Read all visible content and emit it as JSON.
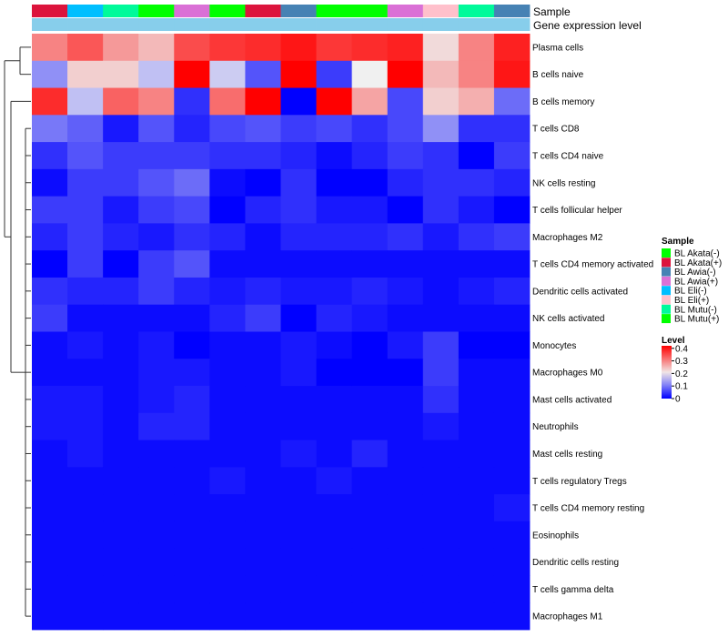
{
  "chart_data": {
    "type": "heatmap",
    "annotation_track_labels": [
      "Sample",
      "Gene expression level"
    ],
    "gene_expression_color": "#87ceeb",
    "sample_colors": {
      "BL Akata(-)": "#00ff00",
      "BL Akata(+)": "#dc143c",
      "BL Awia(-)": "#4682b4",
      "BL Awia(+)": "#da70d6",
      "BL Eli(-)": "#00bfff",
      "BL Eli(+)": "#ffc0cb",
      "BL Mutu(-)": "#00fa9a",
      "BL Mutu(+)": "#00ff00"
    },
    "columns": [
      "BL Akata(+)",
      "BL Eli(-)",
      "BL Mutu(-)",
      "BL Mutu(+)",
      "BL Awia(+)",
      "BL Akata(-)",
      "BL Akata(+)",
      "BL Awia(-)",
      "BL Akata(-)",
      "BL Mutu(+)",
      "BL Awia(+)",
      "BL Eli(+)",
      "BL Mutu(-)",
      "BL Awia(-)"
    ],
    "rows": [
      "Plasma cells",
      "B cells naive",
      "B cells memory",
      "T cells CD8",
      "T cells CD4 naive",
      "NK cells resting",
      "T cells follicular helper",
      "Macrophages M2",
      "T cells CD4 memory activated",
      "Dendritic cells activated",
      "NK cells activated",
      "Monocytes",
      "Macrophages M0",
      "Mast cells activated",
      "Neutrophils",
      "Mast cells resting",
      "T cells regulatory  Tregs",
      "T cells CD4 memory resting",
      "Eosinophils",
      "Dendritic cells resting",
      "T cells gamma delta",
      "Macrophages M1"
    ],
    "values": [
      [
        0.3,
        0.34,
        0.28,
        0.25,
        0.35,
        0.37,
        0.38,
        0.4,
        0.37,
        0.38,
        0.39,
        0.22,
        0.3,
        0.39
      ],
      [
        0.12,
        0.23,
        0.23,
        0.16,
        0.42,
        0.17,
        0.07,
        0.42,
        0.05,
        0.2,
        0.42,
        0.25,
        0.3,
        0.4
      ],
      [
        0.38,
        0.16,
        0.33,
        0.3,
        0.04,
        0.32,
        0.42,
        0.0,
        0.42,
        0.27,
        0.06,
        0.23,
        0.26,
        0.09
      ],
      [
        0.1,
        0.08,
        0.02,
        0.07,
        0.03,
        0.06,
        0.07,
        0.05,
        0.06,
        0.04,
        0.06,
        0.12,
        0.04,
        0.04
      ],
      [
        0.04,
        0.07,
        0.05,
        0.05,
        0.05,
        0.04,
        0.04,
        0.03,
        0.01,
        0.03,
        0.05,
        0.04,
        0.0,
        0.05
      ],
      [
        0.01,
        0.05,
        0.05,
        0.07,
        0.09,
        0.01,
        0.0,
        0.04,
        0.0,
        0.0,
        0.03,
        0.04,
        0.04,
        0.03
      ],
      [
        0.05,
        0.05,
        0.02,
        0.05,
        0.06,
        0.0,
        0.03,
        0.04,
        0.02,
        0.02,
        0.0,
        0.04,
        0.02,
        0.0
      ],
      [
        0.03,
        0.05,
        0.03,
        0.02,
        0.04,
        0.03,
        0.01,
        0.03,
        0.03,
        0.03,
        0.04,
        0.02,
        0.04,
        0.05
      ],
      [
        0.0,
        0.05,
        0.0,
        0.05,
        0.07,
        0.01,
        0.01,
        0.01,
        0.01,
        0.01,
        0.01,
        0.01,
        0.01,
        0.01
      ],
      [
        0.04,
        0.03,
        0.03,
        0.05,
        0.03,
        0.02,
        0.03,
        0.02,
        0.02,
        0.03,
        0.02,
        0.01,
        0.02,
        0.03
      ],
      [
        0.05,
        0.01,
        0.01,
        0.01,
        0.01,
        0.03,
        0.05,
        0.0,
        0.03,
        0.02,
        0.01,
        0.01,
        0.01,
        0.01
      ],
      [
        0.01,
        0.02,
        0.01,
        0.02,
        0.0,
        0.01,
        0.01,
        0.02,
        0.01,
        0.0,
        0.02,
        0.05,
        0.0,
        0.0
      ],
      [
        0.01,
        0.01,
        0.01,
        0.02,
        0.02,
        0.01,
        0.01,
        0.02,
        0.0,
        0.0,
        0.0,
        0.05,
        0.01,
        0.01
      ],
      [
        0.02,
        0.02,
        0.01,
        0.02,
        0.03,
        0.01,
        0.01,
        0.01,
        0.01,
        0.01,
        0.01,
        0.04,
        0.01,
        0.01
      ],
      [
        0.02,
        0.02,
        0.01,
        0.03,
        0.03,
        0.01,
        0.01,
        0.01,
        0.01,
        0.01,
        0.01,
        0.02,
        0.01,
        0.01
      ],
      [
        0.01,
        0.02,
        0.01,
        0.01,
        0.01,
        0.01,
        0.01,
        0.02,
        0.01,
        0.03,
        0.01,
        0.01,
        0.01,
        0.01
      ],
      [
        0.01,
        0.01,
        0.01,
        0.01,
        0.01,
        0.02,
        0.01,
        0.01,
        0.02,
        0.01,
        0.01,
        0.01,
        0.01,
        0.01
      ],
      [
        0.01,
        0.01,
        0.01,
        0.01,
        0.01,
        0.01,
        0.01,
        0.01,
        0.01,
        0.01,
        0.01,
        0.01,
        0.01,
        0.02
      ],
      [
        0.01,
        0.01,
        0.01,
        0.01,
        0.01,
        0.01,
        0.01,
        0.01,
        0.01,
        0.01,
        0.01,
        0.01,
        0.01,
        0.01
      ],
      [
        0.01,
        0.01,
        0.01,
        0.01,
        0.01,
        0.01,
        0.01,
        0.01,
        0.01,
        0.01,
        0.01,
        0.01,
        0.01,
        0.01
      ],
      [
        0.01,
        0.01,
        0.01,
        0.01,
        0.01,
        0.01,
        0.01,
        0.01,
        0.01,
        0.01,
        0.01,
        0.01,
        0.01,
        0.01
      ],
      [
        0.01,
        0.01,
        0.01,
        0.01,
        0.01,
        0.01,
        0.01,
        0.01,
        0.01,
        0.01,
        0.01,
        0.01,
        0.01,
        0.01
      ]
    ],
    "legend_sample_title": "Sample",
    "legend_level_title": "Level",
    "legend_placement": "right",
    "color_scale": {
      "min": 0,
      "mid": 0.2,
      "max": 0.42,
      "low": "#0000ff",
      "midcolor": "#f0f0f0",
      "high": "#ff0000"
    },
    "level_ticks": [
      0,
      0.1,
      0.2,
      0.3,
      0.4
    ],
    "level_tick_labels": [
      "0",
      "0.1",
      "0.2",
      "0.3",
      "0.4"
    ],
    "row_dendrogram": true,
    "grid": false
  }
}
